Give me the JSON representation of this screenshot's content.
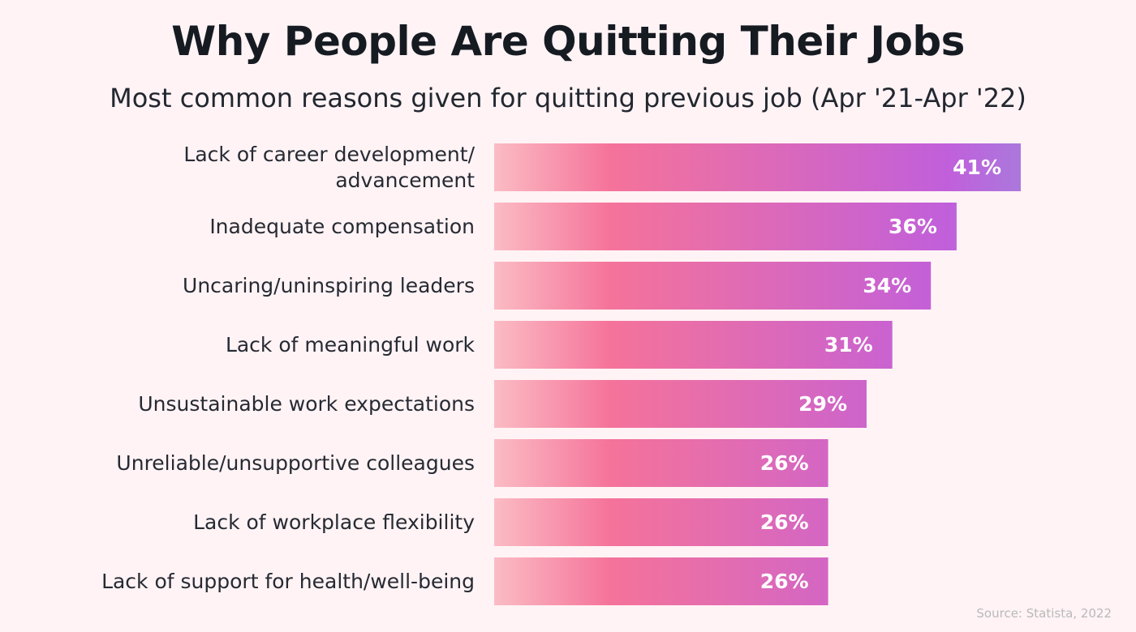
{
  "header": {
    "title": "Why People Are Quitting Their Jobs",
    "subtitle": "Most common reasons given for quitting previous job (Apr '21-Apr '22)"
  },
  "footer": {
    "source": "Source: Statista, 2022"
  },
  "colors": {
    "background": "#fff3f5",
    "bar_gradient_start": "#fbbcc4",
    "bar_gradient_mid": "#f5739a",
    "bar_gradient_end": "#c15fdb",
    "bar_gradient_far": "#ab78dc",
    "value_text": "#ffffff"
  },
  "chart_data": {
    "type": "bar",
    "orientation": "horizontal",
    "categories": [
      [
        "Lack of career development/",
        "advancement"
      ],
      [
        "Inadequate compensation"
      ],
      [
        "Uncaring/uninspiring leaders"
      ],
      [
        "Lack of meaningful work"
      ],
      [
        "Unsustainable work expectations"
      ],
      [
        "Unreliable/unsupportive colleagues"
      ],
      [
        "Lack of workplace flexibility"
      ],
      [
        "Lack of support for health/well-being"
      ]
    ],
    "values": [
      41,
      36,
      34,
      31,
      29,
      26,
      26,
      26
    ],
    "value_labels": [
      "41%",
      "36%",
      "34%",
      "31%",
      "29%",
      "26%",
      "26%",
      "26%"
    ],
    "unit": "%",
    "xlim": [
      0,
      41
    ],
    "grid": false,
    "legend": "none"
  }
}
